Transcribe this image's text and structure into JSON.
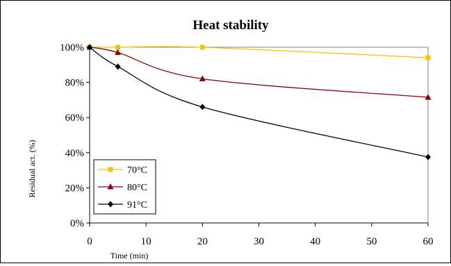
{
  "chart_data": {
    "type": "line",
    "title": "Heat stability",
    "xlabel": "Time (min)",
    "ylabel": "Residual act. (%)",
    "xlim": [
      0,
      60
    ],
    "ylim": [
      0,
      100
    ],
    "x_ticks": [
      0,
      10,
      20,
      30,
      40,
      50,
      60
    ],
    "y_ticks": [
      0,
      20,
      40,
      60,
      80,
      100
    ],
    "y_tick_labels": [
      "0%",
      "20%",
      "40%",
      "60%",
      "80%",
      "100%"
    ],
    "grid": false,
    "legend_position": "bottom-left",
    "x": [
      0,
      5,
      20,
      60
    ],
    "series": [
      {
        "name": "70°C",
        "values": [
          100,
          100,
          100,
          94
        ],
        "color": "#FFC000",
        "marker": "square"
      },
      {
        "name": "80°C",
        "values": [
          100,
          97,
          82,
          71.5
        ],
        "color": "#8B0000",
        "marker": "triangle"
      },
      {
        "name": "91°C",
        "values": [
          100,
          89,
          66,
          37.5
        ],
        "color": "#000000",
        "marker": "diamond"
      }
    ]
  }
}
